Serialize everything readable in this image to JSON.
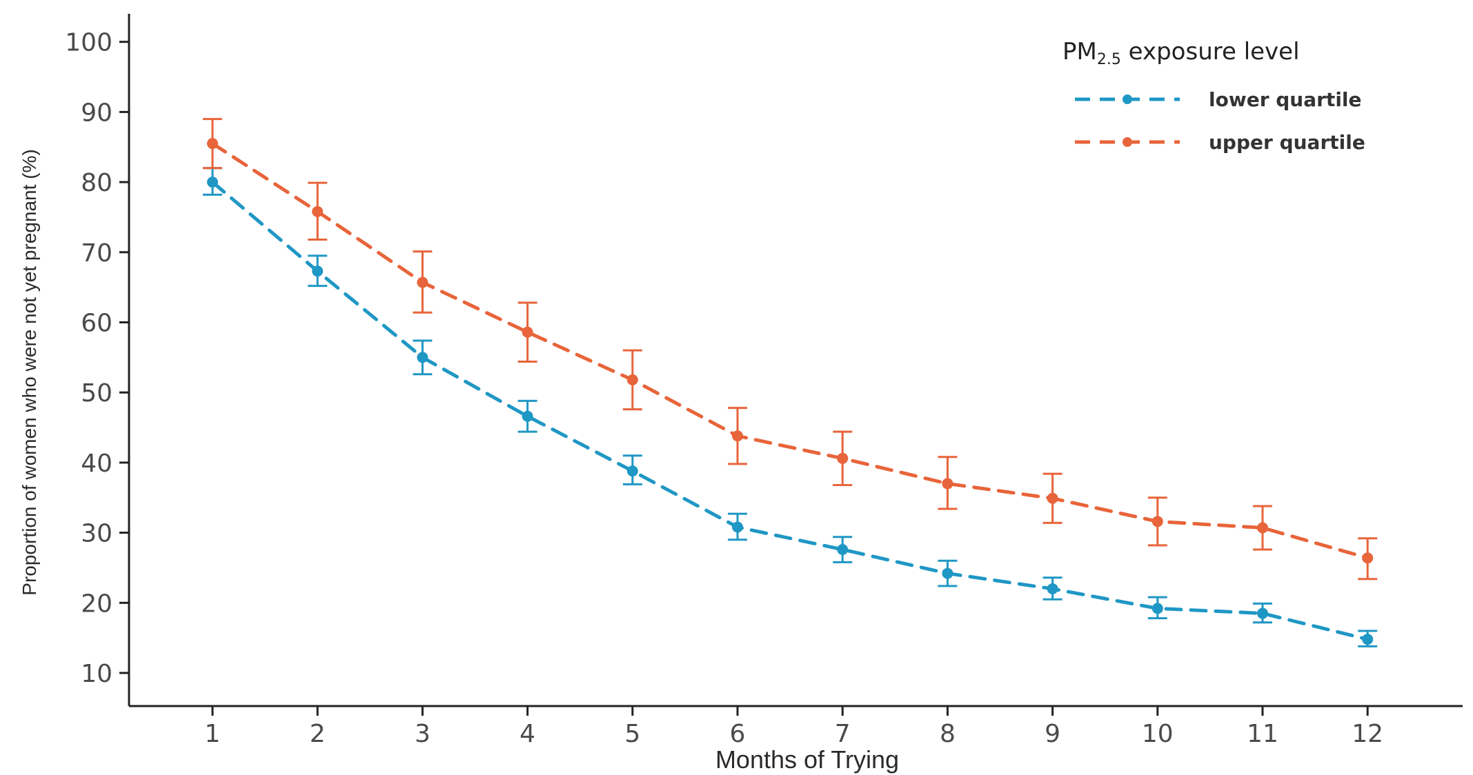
{
  "chart_data": {
    "type": "line",
    "xlabel": "Months of Trying",
    "ylabel": "Proportion of women who were not yet pregnant (%)",
    "x": [
      1,
      2,
      3,
      4,
      5,
      6,
      7,
      8,
      9,
      10,
      11,
      12
    ],
    "x_ticks": [
      1,
      2,
      3,
      4,
      5,
      6,
      7,
      8,
      9,
      10,
      11,
      12
    ],
    "xlim": [
      0.2,
      13
    ],
    "ylim": [
      6,
      103
    ],
    "y_ticks": [
      10,
      20,
      30,
      40,
      50,
      60,
      70,
      80,
      90,
      100
    ],
    "grid": false,
    "legend": {
      "title_main": "PM",
      "title_sub": "2.5",
      "title_rest": " exposure level",
      "position": "top-right"
    },
    "series": [
      {
        "name": "lower quartile",
        "color": "#1f97c4",
        "values": [
          80.0,
          67.3,
          55.0,
          46.6,
          38.8,
          30.8,
          27.6,
          24.2,
          22.0,
          19.2,
          18.5,
          14.8
        ],
        "lower": [
          78.2,
          65.2,
          52.6,
          44.4,
          36.9,
          29.0,
          25.8,
          22.4,
          20.5,
          17.8,
          17.2,
          13.8
        ],
        "upper": [
          82.0,
          69.5,
          57.4,
          48.8,
          41.0,
          32.7,
          29.4,
          26.0,
          23.6,
          20.8,
          19.9,
          16.0
        ]
      },
      {
        "name": "upper quartile",
        "color": "#e8643a",
        "values": [
          85.5,
          75.8,
          65.7,
          58.6,
          51.8,
          43.8,
          40.6,
          37.0,
          34.9,
          31.6,
          30.7,
          26.4
        ],
        "lower": [
          82.0,
          71.8,
          61.4,
          54.4,
          47.6,
          39.8,
          36.8,
          33.4,
          31.4,
          28.2,
          27.6,
          23.4
        ],
        "upper": [
          89.0,
          79.9,
          70.1,
          62.8,
          56.0,
          47.8,
          44.4,
          40.8,
          38.4,
          35.0,
          33.8,
          29.2
        ]
      }
    ]
  }
}
